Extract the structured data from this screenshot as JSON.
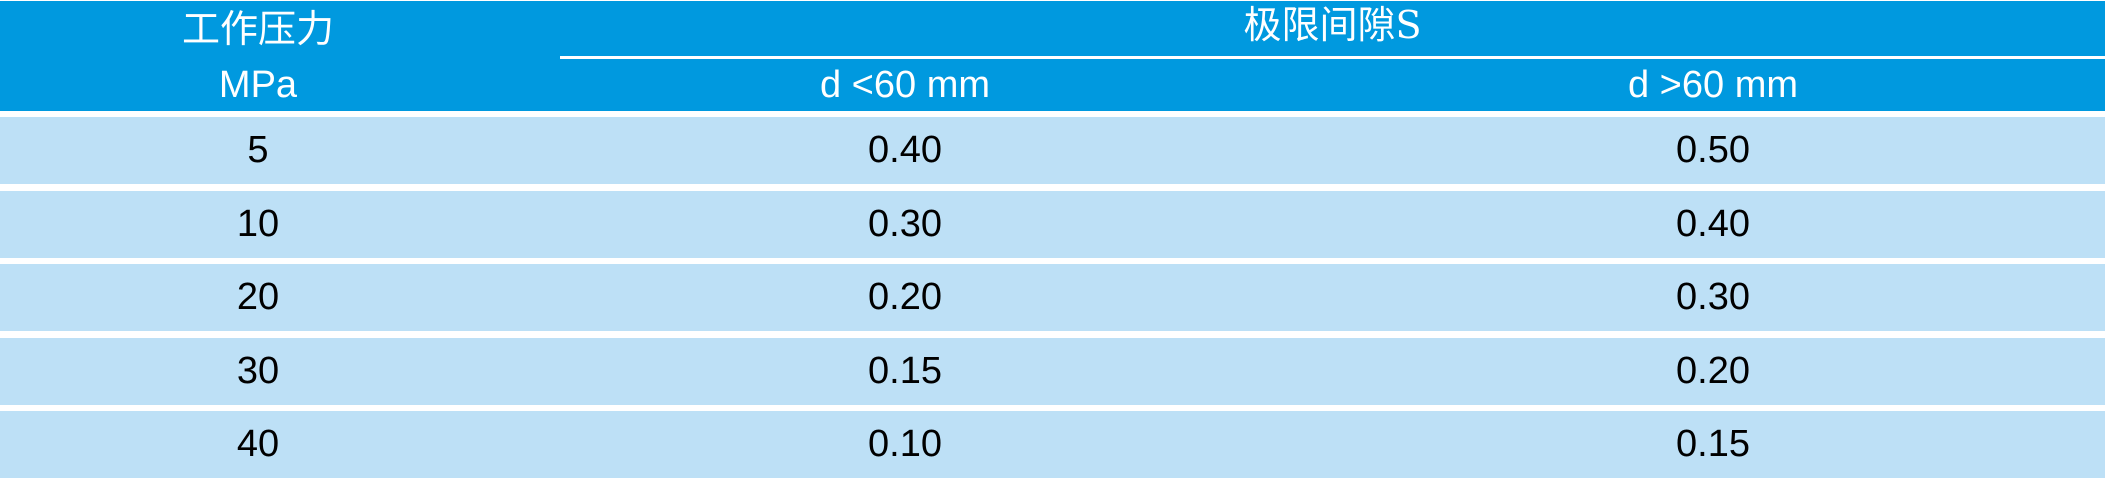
{
  "header": {
    "pressure_label": "工作压力",
    "pressure_unit": "MPa",
    "clearance_label": "极限间隙S",
    "col_small": "d <60 mm",
    "col_large": "d >60 mm"
  },
  "rows": [
    {
      "pressure": "5",
      "small": "0.40",
      "large": "0.50"
    },
    {
      "pressure": "10",
      "small": "0.30",
      "large": "0.40"
    },
    {
      "pressure": "20",
      "small": "0.20",
      "large": "0.30"
    },
    {
      "pressure": "30",
      "small": "0.15",
      "large": "0.20"
    },
    {
      "pressure": "40",
      "small": "0.10",
      "large": "0.15"
    }
  ],
  "colors": {
    "header_bg": "#0099df",
    "row_bg": "#bde0f6"
  }
}
